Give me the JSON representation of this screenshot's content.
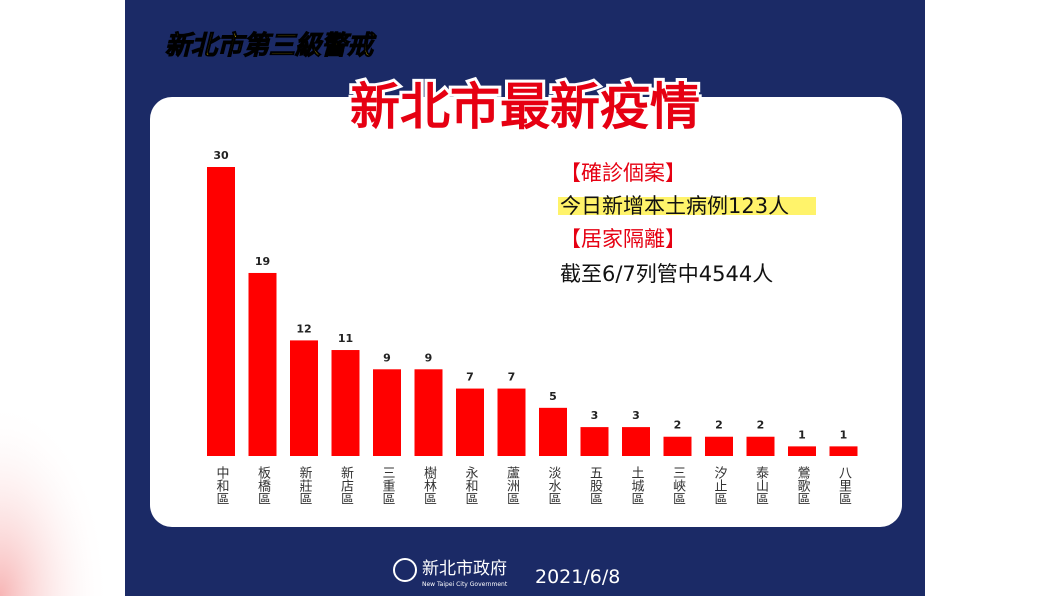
{
  "header": {
    "subtitle": "新北市第三級警戒",
    "title": "新北市最新疫情"
  },
  "chart_data": {
    "type": "bar",
    "categories": [
      "中和區",
      "板橋區",
      "新莊區",
      "新店區",
      "三重區",
      "樹林區",
      "永和區",
      "蘆洲區",
      "淡水區",
      "五股區",
      "土城區",
      "三峽區",
      "汐止區",
      "泰山區",
      "鶯歌區",
      "八里區"
    ],
    "values": [
      30,
      19,
      12,
      11,
      9,
      9,
      7,
      7,
      5,
      3,
      3,
      2,
      2,
      2,
      1,
      1
    ],
    "color": "#ff0000",
    "ylim": [
      0,
      30
    ]
  },
  "notes": [
    "【確診個案】",
    "今日新增本土病例123人",
    "【居家隔離】",
    "截至6/7列管中4544人"
  ],
  "footer": {
    "org": "新北市政府",
    "org_en": "New Taipei City Government",
    "date": "2021/6/8"
  }
}
